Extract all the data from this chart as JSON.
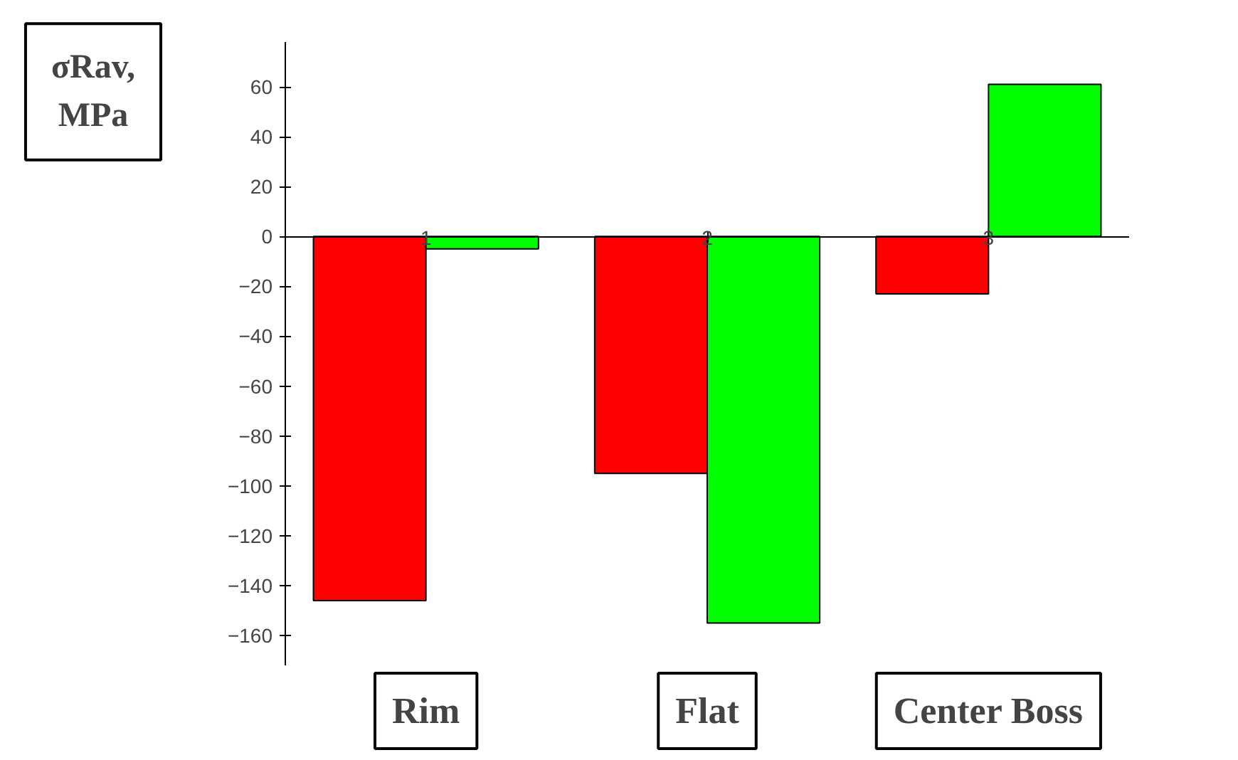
{
  "chart_data": {
    "type": "bar",
    "ylabel": "σRav, MPa",
    "categories": [
      "1",
      "2",
      "3"
    ],
    "series": [
      {
        "color": "#ff0000",
        "values": [
          -146,
          -95,
          -23
        ]
      },
      {
        "color": "#00ff00",
        "values": [
          -5,
          -155,
          61
        ]
      }
    ],
    "ylim": [
      -172,
      78
    ],
    "yticks": [
      -160,
      -140,
      -120,
      -100,
      -80,
      -60,
      -40,
      -20,
      0,
      20,
      40,
      60
    ],
    "grid": false,
    "annotations": [
      "Rim",
      "Flat",
      "Center Boss"
    ]
  }
}
